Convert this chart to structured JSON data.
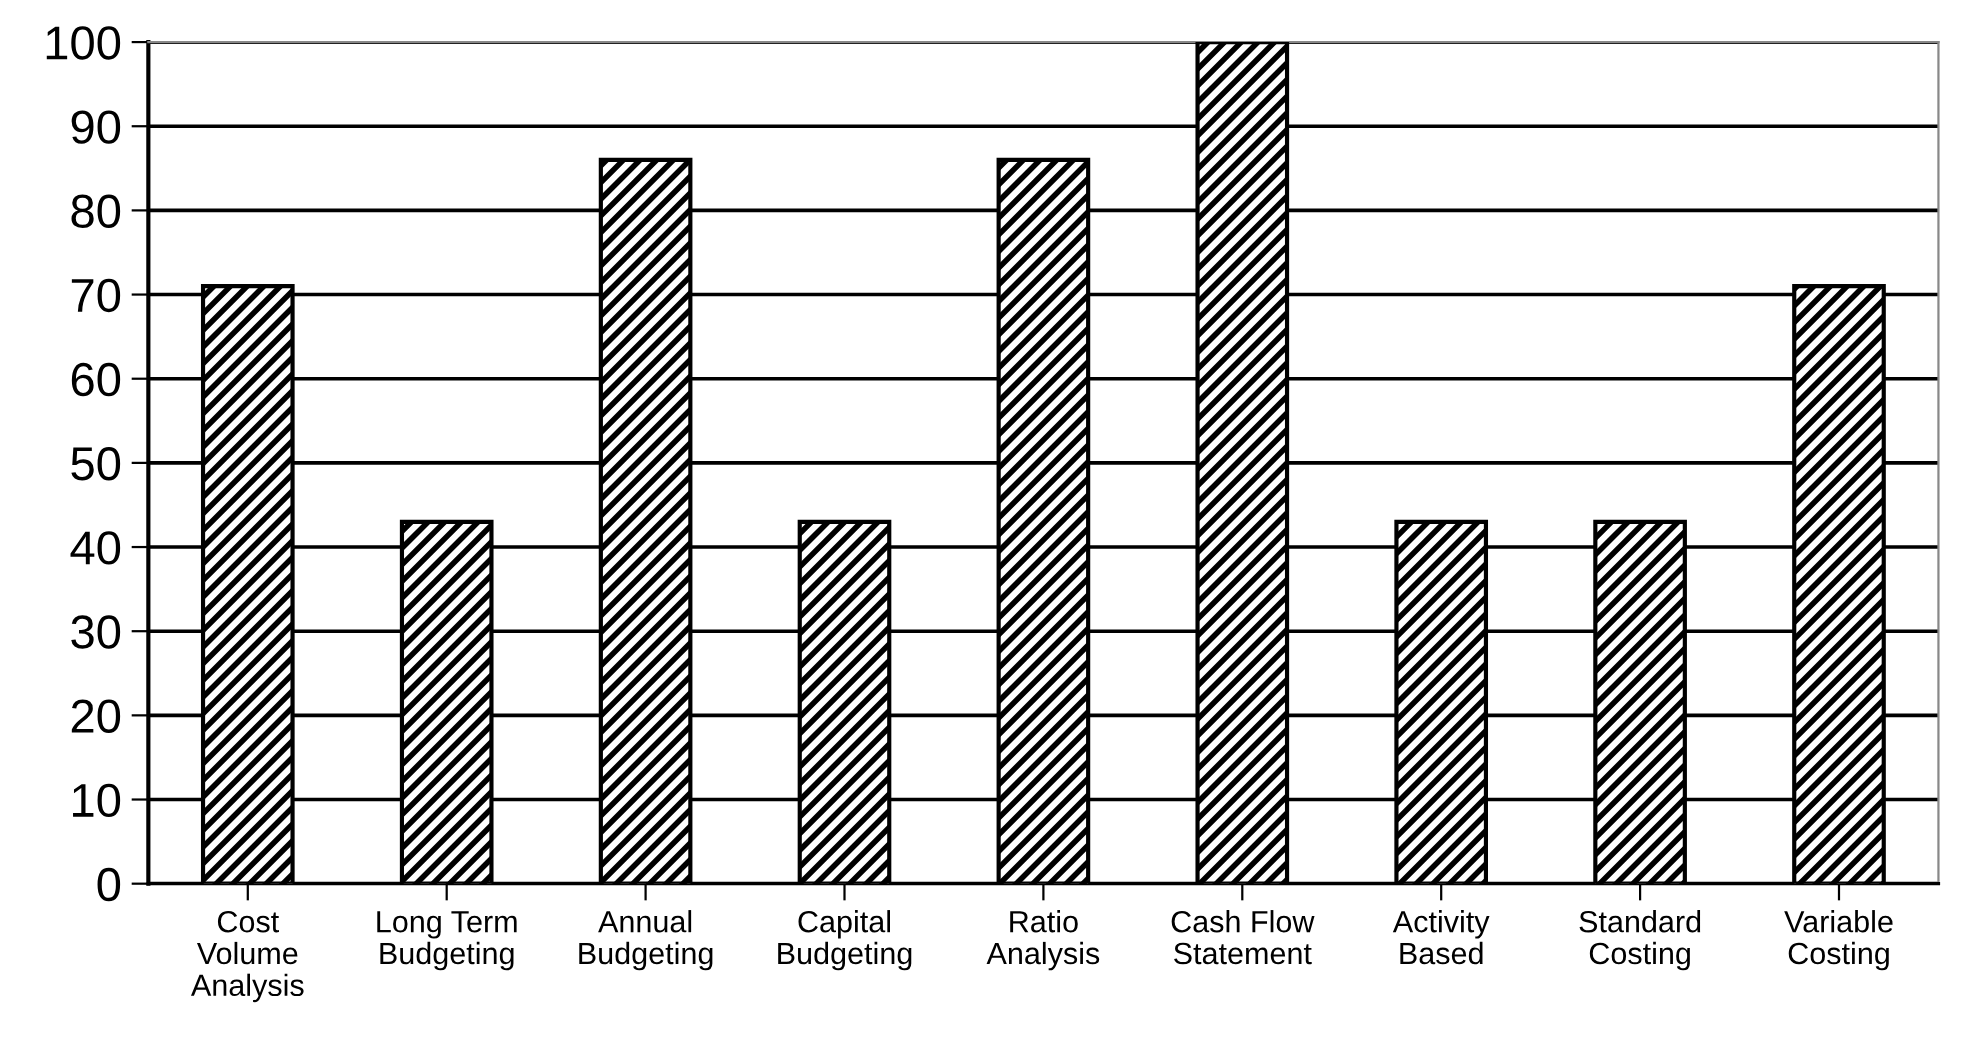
{
  "chart_data": {
    "type": "bar",
    "categories": [
      "Cost\nVolume\nAnalysis",
      "Long Term\nBudgeting",
      "Annual\nBudgeting",
      "Capital\nBudgeting",
      "Ratio\nAnalysis",
      "Cash Flow\nStatement",
      "Activity\nBased",
      "Standard\nCosting",
      "Variable\nCosting"
    ],
    "values": [
      71,
      43,
      86,
      43,
      86,
      100,
      43,
      43,
      71
    ],
    "color": "#000000",
    "ylim": [
      0,
      100
    ],
    "yticks": [
      0,
      10,
      20,
      30,
      40,
      50,
      60,
      70,
      80,
      90,
      100
    ],
    "grid": "y"
  }
}
